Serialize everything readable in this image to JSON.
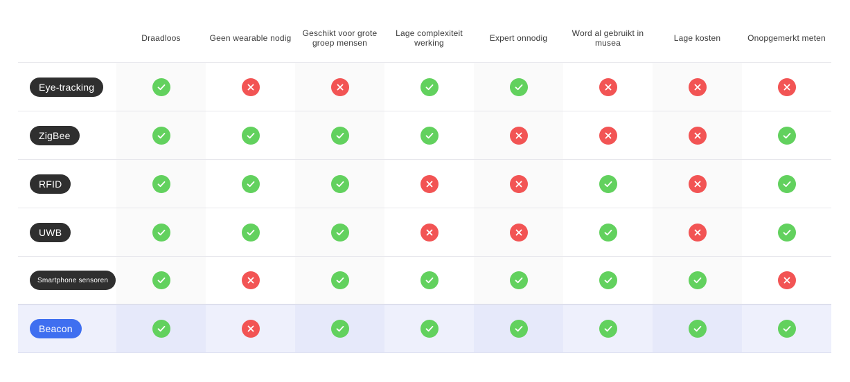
{
  "colors": {
    "yes": "#62d15e",
    "no": "#f25454",
    "pill_dark": "#2f2f2f",
    "pill_highlight": "#3f6ff0",
    "highlight_row": "#eef0fc"
  },
  "columns": [
    "Draadloos",
    "Geen wearable nodig",
    "Geschikt voor grote groep mensen",
    "Lage complexiteit werking",
    "Expert onnodig",
    "Word al gebruikt in musea",
    "Lage kosten",
    "Onopgemerkt meten"
  ],
  "rows": [
    {
      "label": "Eye-tracking",
      "values": [
        true,
        false,
        false,
        true,
        true,
        false,
        false,
        false
      ]
    },
    {
      "label": "ZigBee",
      "values": [
        true,
        true,
        true,
        true,
        false,
        false,
        false,
        true
      ]
    },
    {
      "label": "RFID",
      "values": [
        true,
        true,
        true,
        false,
        false,
        true,
        false,
        true
      ]
    },
    {
      "label": "UWB",
      "values": [
        true,
        true,
        true,
        false,
        false,
        true,
        false,
        true
      ]
    },
    {
      "label": "Smartphone sensoren",
      "values": [
        true,
        false,
        true,
        true,
        true,
        true,
        true,
        false
      ]
    },
    {
      "label": "Beacon",
      "values": [
        true,
        false,
        true,
        true,
        true,
        true,
        true,
        true
      ],
      "highlighted": true
    }
  ],
  "icons": {
    "yes": "check-icon",
    "no": "cross-icon"
  }
}
